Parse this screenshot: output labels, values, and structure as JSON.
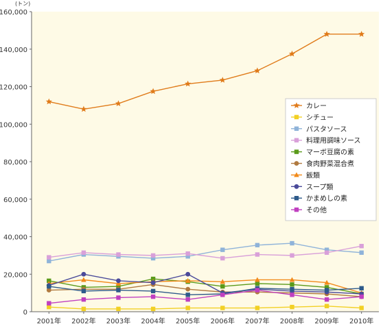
{
  "chart_data": {
    "type": "line",
    "unit_label": "(トン)",
    "categories": [
      "2001年",
      "2002年",
      "2003年",
      "2004年",
      "2005年",
      "2006年",
      "2007年",
      "2008年",
      "2009年",
      "2010年"
    ],
    "ylim": [
      0,
      160000
    ],
    "yticks": [
      "0",
      "20,000",
      "40,000",
      "60,000",
      "80,000",
      "100,000",
      "120,000",
      "140,000",
      "160,000"
    ],
    "grid": false,
    "legend_position": "right",
    "background": "#fefae6",
    "series": [
      {
        "name": "カレー",
        "color": "#e07b1a",
        "marker": "star",
        "values": [
          112000,
          108000,
          111000,
          117500,
          121500,
          123500,
          128500,
          137500,
          148000,
          148000
        ]
      },
      {
        "name": "シチュー",
        "color": "#f2d024",
        "marker": "square",
        "values": [
          2500,
          1500,
          1500,
          1500,
          2000,
          2000,
          2000,
          2500,
          3000,
          2000
        ]
      },
      {
        "name": "パスタソース",
        "color": "#8fb3d9",
        "marker": "square",
        "values": [
          27000,
          30500,
          29500,
          28500,
          29500,
          33000,
          35500,
          36500,
          33000,
          31500
        ]
      },
      {
        "name": "料理用調味ソース",
        "color": "#d9a0d9",
        "marker": "square",
        "values": [
          29000,
          31500,
          30500,
          30000,
          31000,
          28500,
          30500,
          30000,
          31500,
          35000
        ]
      },
      {
        "name": "マーボ豆腐の素",
        "color": "#5a9a1a",
        "marker": "square",
        "values": [
          16500,
          13000,
          13500,
          17500,
          16000,
          13500,
          15000,
          14500,
          13000,
          9500
        ]
      },
      {
        "name": "食肉野菜混合煮",
        "color": "#b07a40",
        "marker": "circle",
        "values": [
          11500,
          12000,
          12000,
          14500,
          12000,
          10500,
          10500,
          10000,
          9500,
          8000
        ]
      },
      {
        "name": "飯類",
        "color": "#f28a1a",
        "marker": "triangle",
        "values": [
          15000,
          17000,
          15000,
          16000,
          16500,
          16000,
          17000,
          17000,
          15500,
          10000
        ]
      },
      {
        "name": "スープ類",
        "color": "#4a4a9a",
        "marker": "circle",
        "values": [
          14000,
          20000,
          16500,
          15500,
          20000,
          10000,
          12000,
          11000,
          10500,
          9500
        ]
      },
      {
        "name": "かまめしの素",
        "color": "#2e5a8a",
        "marker": "square",
        "values": [
          13500,
          11000,
          11500,
          11000,
          9000,
          9500,
          12500,
          12000,
          11500,
          12500
        ]
      },
      {
        "name": "その他",
        "color": "#c040c0",
        "marker": "square",
        "values": [
          4500,
          6500,
          7500,
          8000,
          6500,
          9000,
          11500,
          9000,
          6500,
          8000
        ]
      }
    ]
  }
}
